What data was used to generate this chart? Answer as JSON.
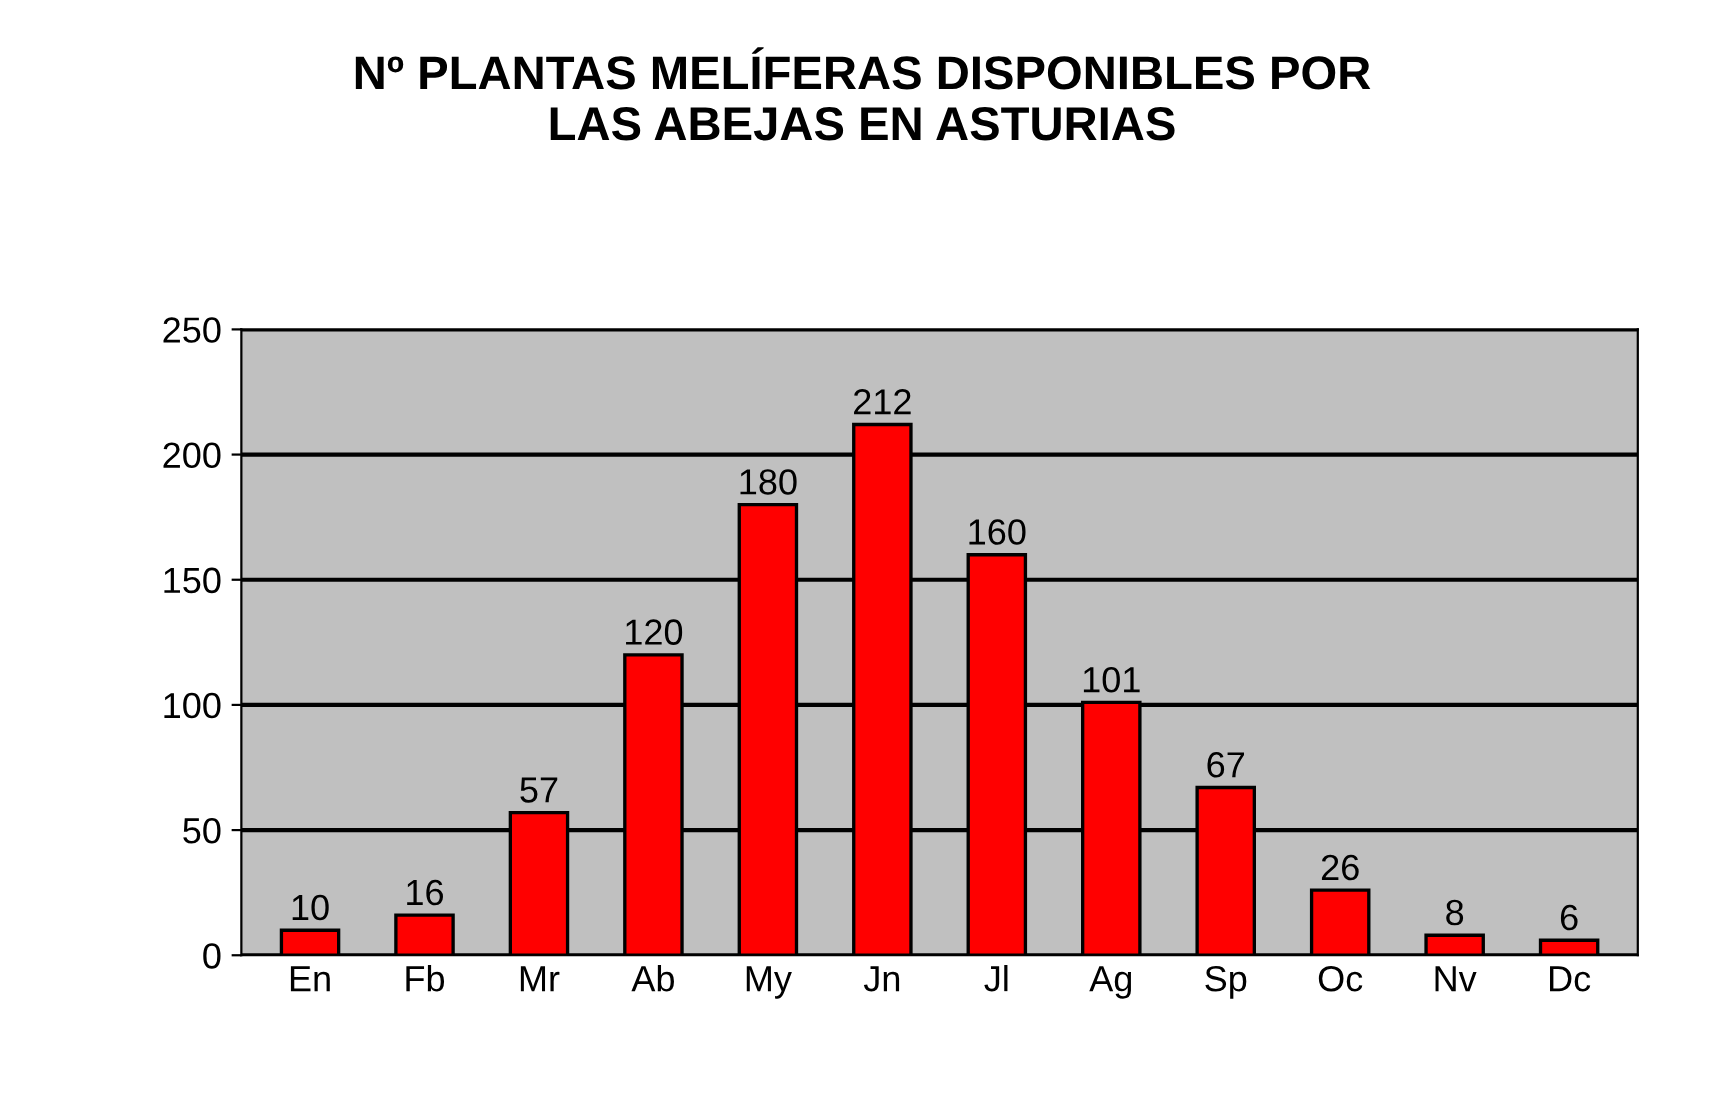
{
  "chart_data": {
    "type": "bar",
    "title": "Nº PLANTAS MELÍFERAS DISPONIBLES POR\nLAS ABEJAS EN ASTURIAS",
    "categories": [
      "En",
      "Fb",
      "Mr",
      "Ab",
      "My",
      "Jn",
      "Jl",
      "Ag",
      "Sp",
      "Oc",
      "Nv",
      "Dc"
    ],
    "values": [
      10,
      16,
      57,
      120,
      180,
      212,
      160,
      101,
      67,
      26,
      8,
      6
    ],
    "color": "#ff0000",
    "ylim": [
      0,
      250
    ],
    "yticks": [
      0,
      50,
      100,
      150,
      200,
      250
    ],
    "grid": "y",
    "data_labels": true
  }
}
